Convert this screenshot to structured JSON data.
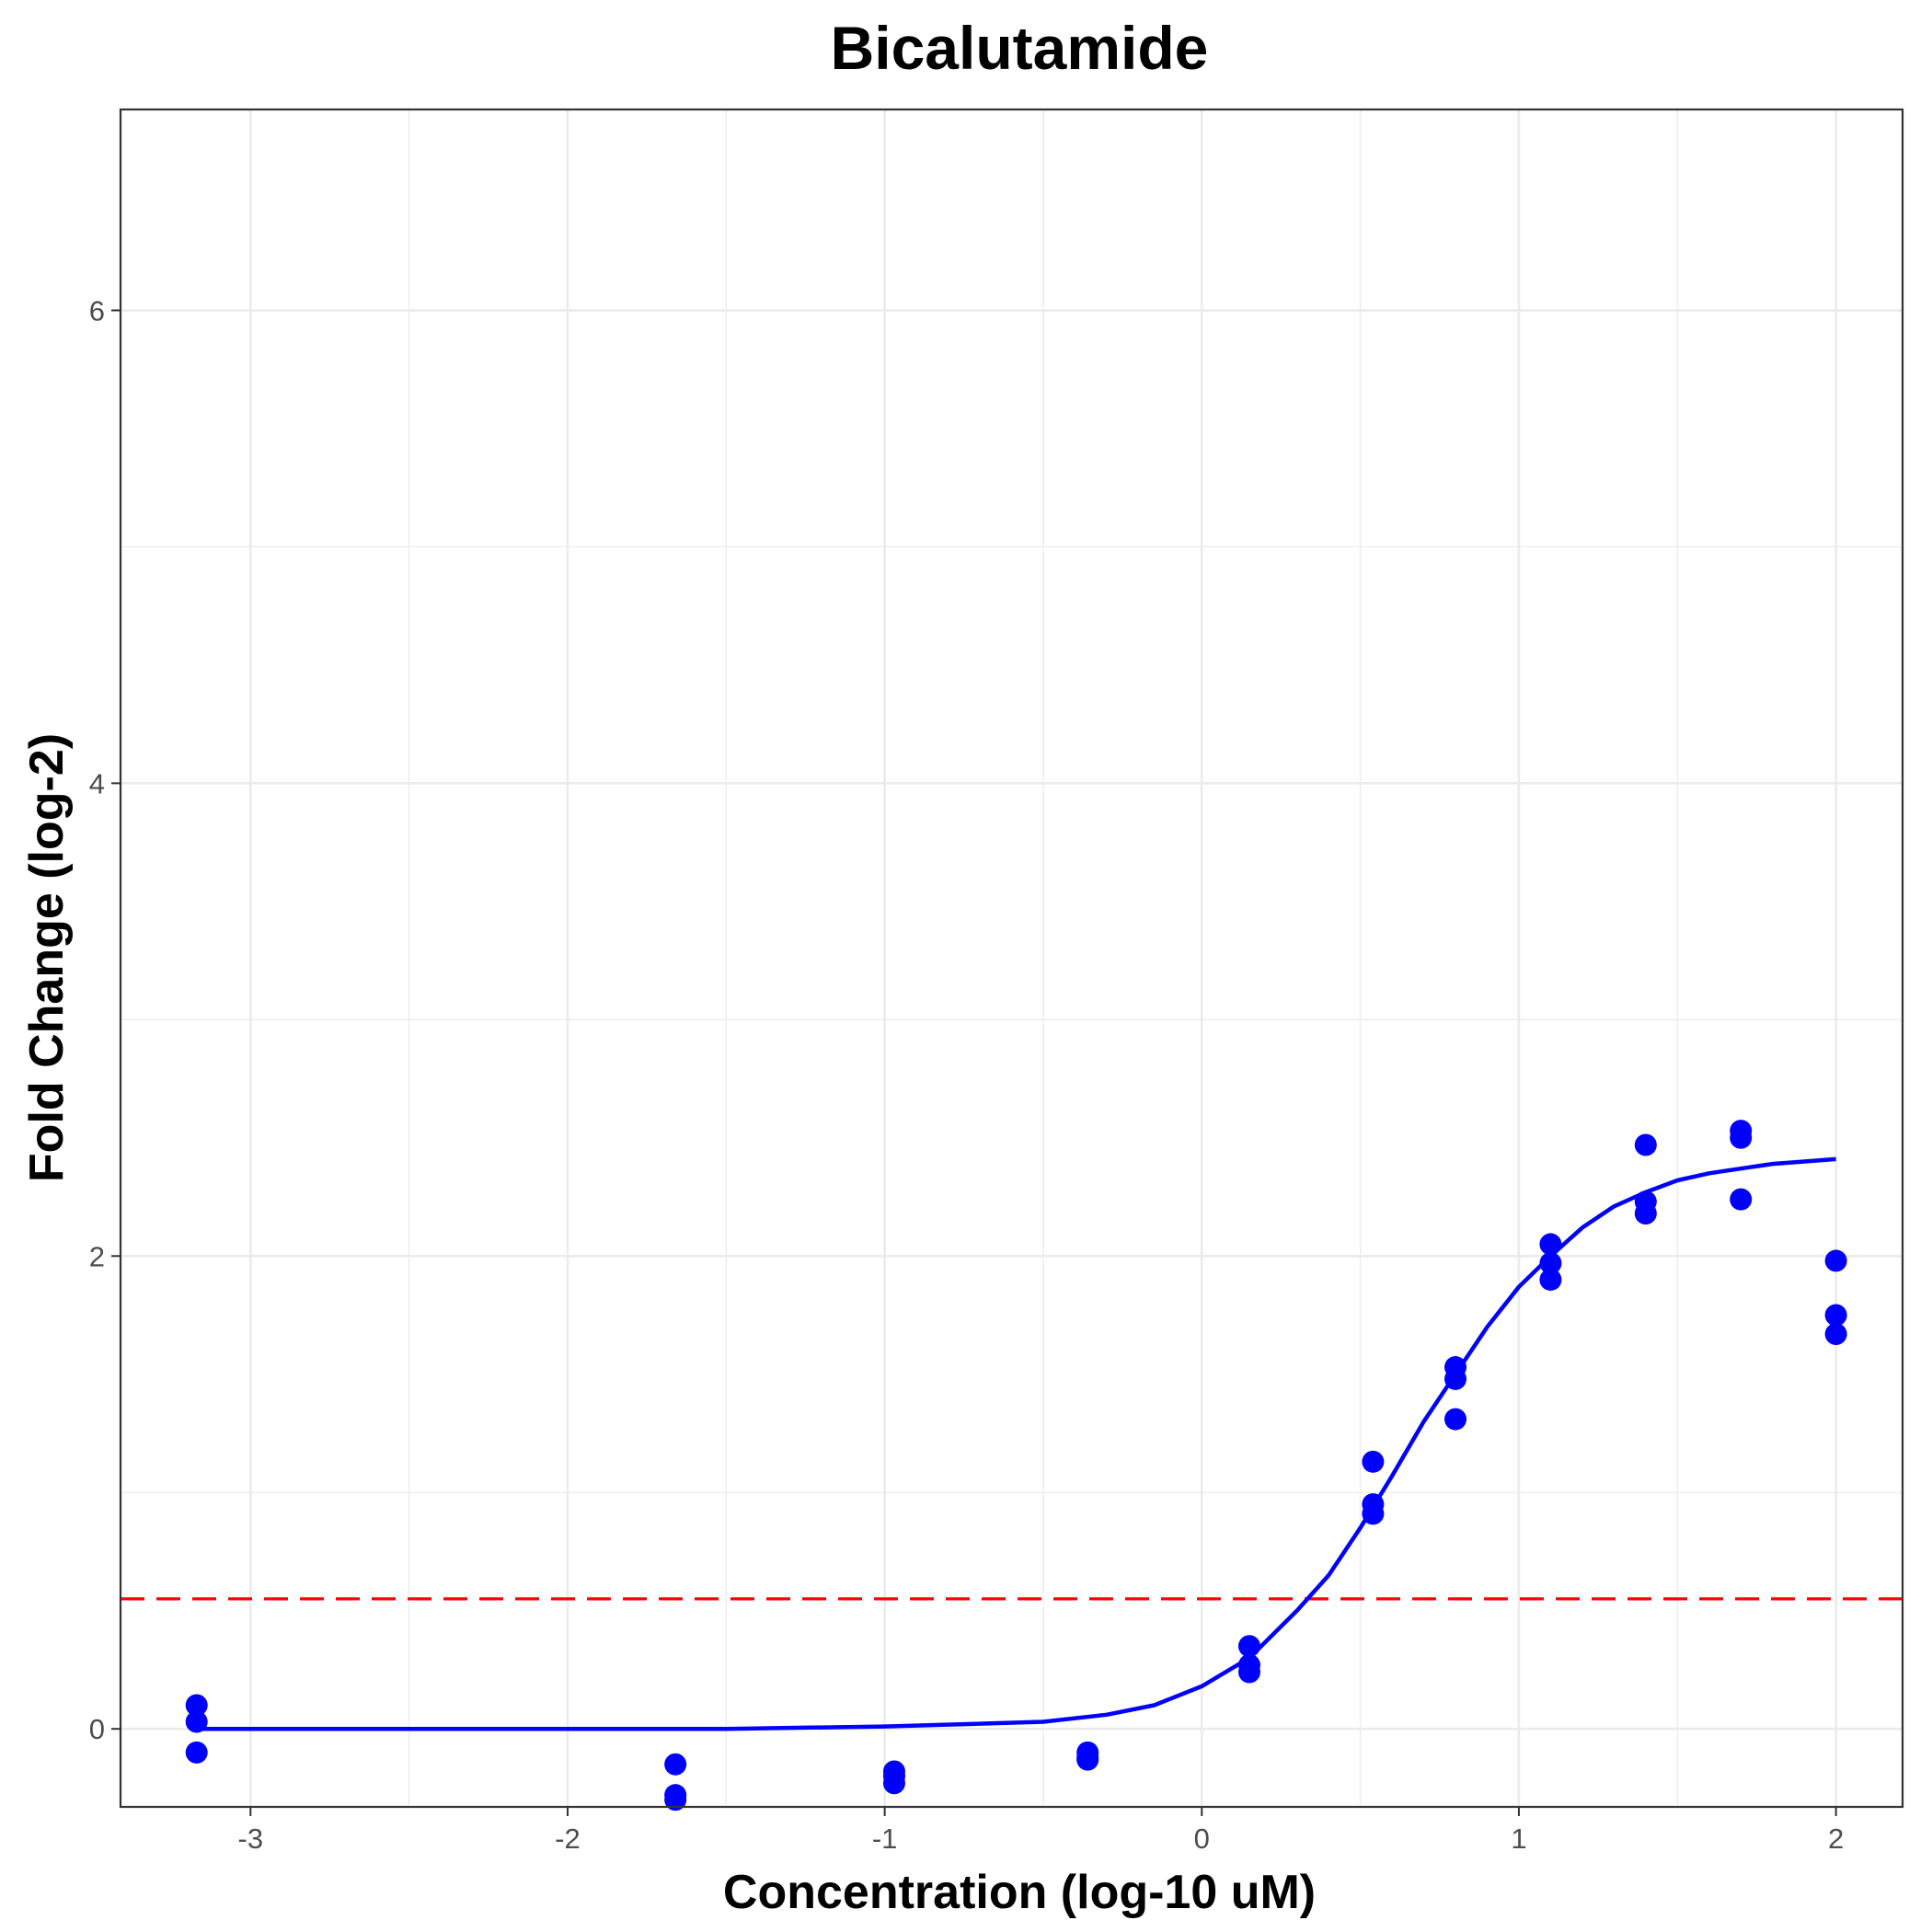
{
  "chart_data": {
    "type": "scatter",
    "title": "Bicalutamide",
    "xlabel": "Concentration (log-10 uM)",
    "ylabel": "Fold Change (log-2)",
    "xlim": [
      -3.41,
      2.21
    ],
    "ylim": [
      -0.33,
      6.85
    ],
    "x_ticks": [
      -3,
      -2,
      -1,
      0,
      1,
      2
    ],
    "x_tick_labels": [
      "-3",
      "-2",
      "-1",
      "0",
      "1",
      "2"
    ],
    "y_ticks": [
      0,
      2,
      4,
      6
    ],
    "y_tick_labels": [
      "0",
      "2",
      "4",
      "6"
    ],
    "grid": true,
    "legend": "none",
    "colors": {
      "points": "#0000ff",
      "curve": "#0000ff",
      "threshold": "#ff0000"
    },
    "points": [
      {
        "x": -3.17,
        "y": 0.1
      },
      {
        "x": -3.17,
        "y": 0.03
      },
      {
        "x": -3.17,
        "y": -0.1
      },
      {
        "x": -1.66,
        "y": -0.15
      },
      {
        "x": -1.66,
        "y": -0.28
      },
      {
        "x": -1.66,
        "y": -0.3
      },
      {
        "x": -0.97,
        "y": -0.18
      },
      {
        "x": -0.97,
        "y": -0.2
      },
      {
        "x": -0.97,
        "y": -0.23
      },
      {
        "x": -0.36,
        "y": -0.1
      },
      {
        "x": -0.36,
        "y": -0.12
      },
      {
        "x": -0.36,
        "y": -0.13
      },
      {
        "x": 0.15,
        "y": 0.35
      },
      {
        "x": 0.15,
        "y": 0.27
      },
      {
        "x": 0.15,
        "y": 0.24
      },
      {
        "x": 0.54,
        "y": 1.13
      },
      {
        "x": 0.54,
        "y": 0.95
      },
      {
        "x": 0.54,
        "y": 0.91
      },
      {
        "x": 0.8,
        "y": 1.53
      },
      {
        "x": 0.8,
        "y": 1.48
      },
      {
        "x": 0.8,
        "y": 1.31
      },
      {
        "x": 1.1,
        "y": 2.05
      },
      {
        "x": 1.1,
        "y": 1.97
      },
      {
        "x": 1.1,
        "y": 1.9
      },
      {
        "x": 1.4,
        "y": 2.47
      },
      {
        "x": 1.4,
        "y": 2.23
      },
      {
        "x": 1.4,
        "y": 2.18
      },
      {
        "x": 1.7,
        "y": 2.53
      },
      {
        "x": 1.7,
        "y": 2.5
      },
      {
        "x": 1.7,
        "y": 2.24
      },
      {
        "x": 2.0,
        "y": 1.98
      },
      {
        "x": 2.0,
        "y": 1.75
      },
      {
        "x": 2.0,
        "y": 1.67
      }
    ],
    "fit_curve": [
      {
        "x": -3.17,
        "y": 0.0
      },
      {
        "x": -2.5,
        "y": 0.0
      },
      {
        "x": -2.0,
        "y": 0.0
      },
      {
        "x": -1.5,
        "y": 0.0
      },
      {
        "x": -1.0,
        "y": 0.01
      },
      {
        "x": -0.75,
        "y": 0.02
      },
      {
        "x": -0.5,
        "y": 0.03
      },
      {
        "x": -0.3,
        "y": 0.06
      },
      {
        "x": -0.15,
        "y": 0.1
      },
      {
        "x": 0.0,
        "y": 0.18
      },
      {
        "x": 0.15,
        "y": 0.3
      },
      {
        "x": 0.3,
        "y": 0.5
      },
      {
        "x": 0.4,
        "y": 0.65
      },
      {
        "x": 0.5,
        "y": 0.85
      },
      {
        "x": 0.6,
        "y": 1.07
      },
      {
        "x": 0.7,
        "y": 1.3
      },
      {
        "x": 0.8,
        "y": 1.5
      },
      {
        "x": 0.9,
        "y": 1.7
      },
      {
        "x": 1.0,
        "y": 1.87
      },
      {
        "x": 1.1,
        "y": 2.0
      },
      {
        "x": 1.2,
        "y": 2.12
      },
      {
        "x": 1.3,
        "y": 2.21
      },
      {
        "x": 1.4,
        "y": 2.27
      },
      {
        "x": 1.5,
        "y": 2.32
      },
      {
        "x": 1.6,
        "y": 2.35
      },
      {
        "x": 1.7,
        "y": 2.37
      },
      {
        "x": 1.8,
        "y": 2.39
      },
      {
        "x": 1.9,
        "y": 2.4
      },
      {
        "x": 2.0,
        "y": 2.41
      }
    ],
    "threshold_y": 0.55
  }
}
